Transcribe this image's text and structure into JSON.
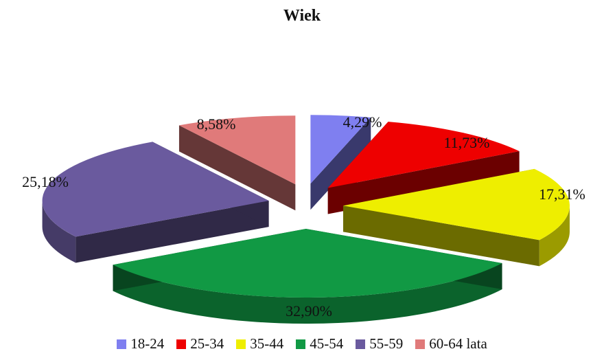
{
  "chart_data": {
    "type": "pie",
    "title": "Wiek",
    "series": [
      {
        "name": "18-24",
        "value": 4.29,
        "label": "4,29%",
        "color": "#7f7ff0"
      },
      {
        "name": "25-34",
        "value": 11.73,
        "label": "11,73%",
        "color": "#ee0000"
      },
      {
        "name": "35-44",
        "value": 17.31,
        "label": "17,31%",
        "color": "#eeee00"
      },
      {
        "name": "45-54",
        "value": 32.9,
        "label": "32,90%",
        "color": "#119944"
      },
      {
        "name": "55-59",
        "value": 25.18,
        "label": "25,18%",
        "color": "#6a5a9e"
      },
      {
        "name": "60-64 lata",
        "value": 8.58,
        "label": "8,58%",
        "color": "#e07a7a"
      }
    ],
    "legend_position": "bottom",
    "style": "3d-exploded"
  }
}
